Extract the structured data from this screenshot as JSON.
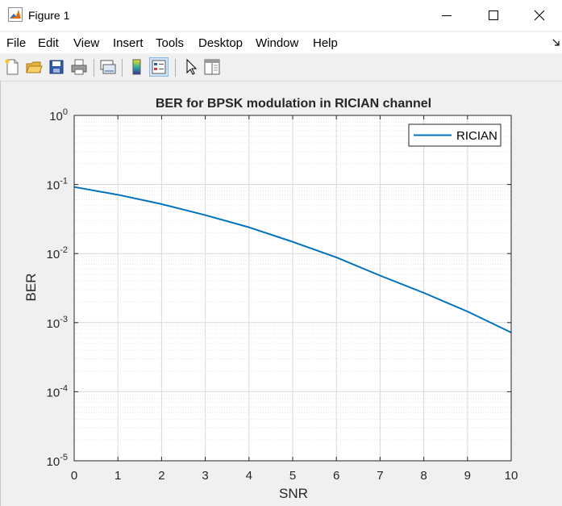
{
  "window": {
    "title": "Figure 1"
  },
  "menu": [
    "File",
    "Edit",
    "View",
    "Insert",
    "Tools",
    "Desktop",
    "Window",
    "Help"
  ],
  "toolbar": {
    "buttons": [
      "new-figure-icon",
      "open-file-icon",
      "save-icon",
      "print-icon",
      "link-plot-icon",
      "colorbar-icon",
      "legend-icon",
      "pointer-icon",
      "property-editor-icon"
    ]
  },
  "chart_data": {
    "type": "line",
    "title": "BER for BPSK modulation in RICIAN channel",
    "xlabel": "SNR",
    "ylabel": "BER",
    "xlim": [
      0,
      10
    ],
    "ylim": [
      1e-05,
      1
    ],
    "yscale": "log",
    "grid": true,
    "minor_grid": true,
    "legend_position": "top-right",
    "x_ticks": [
      "0",
      "1",
      "2",
      "3",
      "4",
      "5",
      "6",
      "7",
      "8",
      "9",
      "10"
    ],
    "y_ticks": [
      {
        "base": "10",
        "exp": "-5"
      },
      {
        "base": "10",
        "exp": "-4"
      },
      {
        "base": "10",
        "exp": "-3"
      },
      {
        "base": "10",
        "exp": "-2"
      },
      {
        "base": "10",
        "exp": "-1"
      },
      {
        "base": "10",
        "exp": "0"
      }
    ],
    "series": [
      {
        "name": "RICIAN",
        "color": "#0072bd",
        "x": [
          0,
          1,
          2,
          3,
          4,
          5,
          6,
          7,
          8,
          9,
          10
        ],
        "y": [
          0.092,
          0.071,
          0.052,
          0.036,
          0.024,
          0.0148,
          0.0088,
          0.0048,
          0.0027,
          0.00145,
          0.00072
        ]
      }
    ]
  }
}
